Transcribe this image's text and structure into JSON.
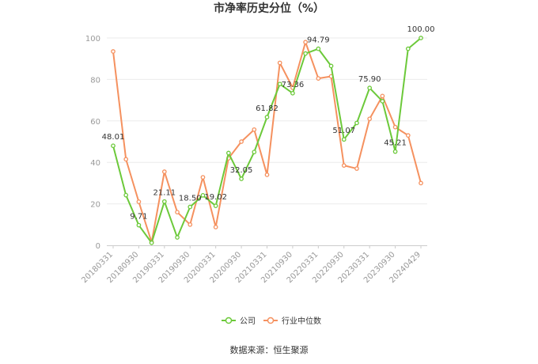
{
  "chart_data": {
    "type": "line",
    "title": "市净率历史分位（%）",
    "ylim": [
      0,
      100
    ],
    "yticks": [
      0,
      20,
      40,
      60,
      80,
      100
    ],
    "grid": true,
    "legend_position": "bottom",
    "source": "数据来源：恒生聚源",
    "x_tick_labels": [
      "20180331",
      "20180930",
      "20190331",
      "20190930",
      "20200331",
      "20200930",
      "20210331",
      "20210930",
      "20220331",
      "20220930",
      "20230331",
      "20230930",
      "20240429"
    ],
    "x": [
      "20180331",
      "20180630",
      "20180930",
      "20181231",
      "20190331",
      "20190630",
      "20190930",
      "20191231",
      "20200331",
      "20200630",
      "20200930",
      "20201231",
      "20210331",
      "20210630",
      "20210930",
      "20211231",
      "20220331",
      "20220630",
      "20220930",
      "20221231",
      "20230331",
      "20230630",
      "20230930",
      "20231231",
      "20240429"
    ],
    "series": [
      {
        "name": "公司",
        "color": "#6cc93a",
        "values": [
          48.01,
          24.2,
          9.71,
          1.2,
          21.11,
          3.8,
          18.5,
          24.1,
          19.02,
          44.5,
          32.05,
          45.0,
          61.82,
          77.8,
          73.36,
          92.5,
          94.79,
          86.5,
          51.07,
          59.0,
          75.9,
          69.5,
          45.21,
          94.8,
          100.0
        ],
        "labels": {
          "0": "48.01",
          "2": "9.71",
          "4": "21.11",
          "6": "18.50",
          "8": "19.02",
          "10": "32.05",
          "12": "61.82",
          "14": "73.36",
          "16": "94.79",
          "18": "51.07",
          "20": "75.90",
          "22": "45.21",
          "24": "100.00"
        }
      },
      {
        "name": "行业中位数",
        "color": "#f5915f",
        "values": [
          93.5,
          41.5,
          21.0,
          1.5,
          35.5,
          16.0,
          10.0,
          32.8,
          8.8,
          42.0,
          50.0,
          55.8,
          34.0,
          88.0,
          76.0,
          98.0,
          80.5,
          81.5,
          38.5,
          37.0,
          61.0,
          72.0,
          57.0,
          53.0,
          30.0
        ],
        "labels": {}
      }
    ]
  }
}
